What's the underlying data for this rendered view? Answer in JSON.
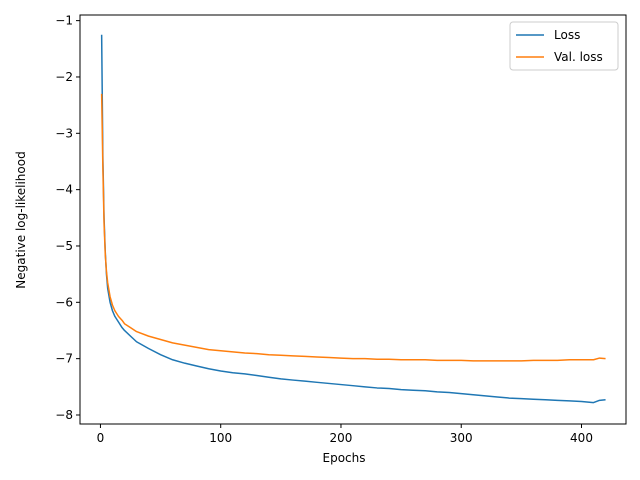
{
  "chart_data": {
    "type": "line",
    "xlabel": "Epochs",
    "ylabel": "Negative log-likelihood",
    "xlim": [
      -17,
      437
    ],
    "ylim": [
      -8.16,
      -0.9
    ],
    "xticks": [
      0,
      100,
      200,
      300,
      400
    ],
    "yticks": [
      -1,
      -2,
      -3,
      -4,
      -5,
      -6,
      -7,
      -8
    ],
    "xtick_labels": [
      "0",
      "100",
      "200",
      "300",
      "400"
    ],
    "ytick_labels": [
      "−1",
      "−2",
      "−3",
      "−4",
      "−5",
      "−6",
      "−7",
      "−8"
    ],
    "grid": false,
    "legend_position": "top-right",
    "series": [
      {
        "name": "Loss",
        "color": "#1f77b4",
        "x": [
          1,
          2,
          3,
          4,
          5,
          6,
          8,
          10,
          12,
          15,
          18,
          20,
          25,
          30,
          40,
          50,
          60,
          70,
          80,
          90,
          100,
          110,
          120,
          130,
          140,
          150,
          160,
          170,
          180,
          190,
          200,
          210,
          220,
          230,
          240,
          250,
          260,
          270,
          280,
          290,
          300,
          310,
          320,
          330,
          340,
          350,
          360,
          370,
          380,
          390,
          400,
          410,
          415,
          420
        ],
        "y": [
          -1.25,
          -3.4,
          -4.5,
          -5.1,
          -5.5,
          -5.75,
          -6.0,
          -6.15,
          -6.25,
          -6.35,
          -6.45,
          -6.5,
          -6.6,
          -6.7,
          -6.82,
          -6.93,
          -7.02,
          -7.08,
          -7.13,
          -7.18,
          -7.22,
          -7.25,
          -7.27,
          -7.3,
          -7.33,
          -7.36,
          -7.38,
          -7.4,
          -7.42,
          -7.44,
          -7.46,
          -7.48,
          -7.5,
          -7.52,
          -7.53,
          -7.55,
          -7.56,
          -7.57,
          -7.59,
          -7.6,
          -7.62,
          -7.64,
          -7.66,
          -7.68,
          -7.7,
          -7.71,
          -7.72,
          -7.73,
          -7.74,
          -7.75,
          -7.76,
          -7.78,
          -7.74,
          -7.73
        ]
      },
      {
        "name": "Val. loss",
        "color": "#ff7f0e",
        "x": [
          1,
          2,
          3,
          4,
          5,
          6,
          8,
          10,
          12,
          15,
          18,
          20,
          25,
          30,
          40,
          50,
          60,
          70,
          80,
          90,
          100,
          110,
          120,
          130,
          140,
          150,
          160,
          170,
          180,
          190,
          200,
          210,
          220,
          230,
          240,
          250,
          260,
          270,
          280,
          290,
          300,
          310,
          320,
          330,
          340,
          350,
          360,
          370,
          380,
          390,
          400,
          410,
          415,
          420
        ],
        "y": [
          -2.3,
          -3.6,
          -4.6,
          -5.15,
          -5.45,
          -5.65,
          -5.9,
          -6.05,
          -6.15,
          -6.25,
          -6.32,
          -6.38,
          -6.45,
          -6.52,
          -6.6,
          -6.66,
          -6.72,
          -6.76,
          -6.8,
          -6.84,
          -6.86,
          -6.88,
          -6.9,
          -6.91,
          -6.93,
          -6.94,
          -6.95,
          -6.96,
          -6.97,
          -6.98,
          -6.99,
          -7.0,
          -7.0,
          -7.01,
          -7.01,
          -7.02,
          -7.02,
          -7.02,
          -7.03,
          -7.03,
          -7.03,
          -7.04,
          -7.04,
          -7.04,
          -7.04,
          -7.04,
          -7.03,
          -7.03,
          -7.03,
          -7.02,
          -7.02,
          -7.02,
          -6.99,
          -7.0
        ]
      }
    ]
  }
}
